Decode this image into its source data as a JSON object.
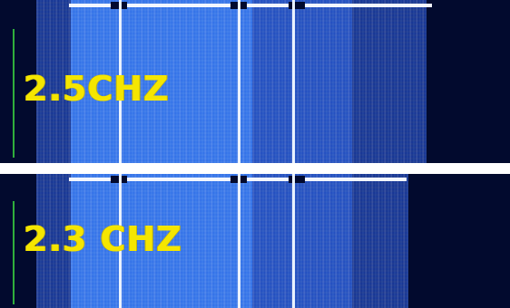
{
  "panels": {
    "top": {
      "label": "2.5CHZ"
    },
    "bottom": {
      "label": "2.3 CHZ"
    }
  },
  "colors": {
    "background": "#020a2e",
    "signal": "#2f6fe6",
    "label": "#f5e600",
    "marker": "#2fae3c"
  }
}
